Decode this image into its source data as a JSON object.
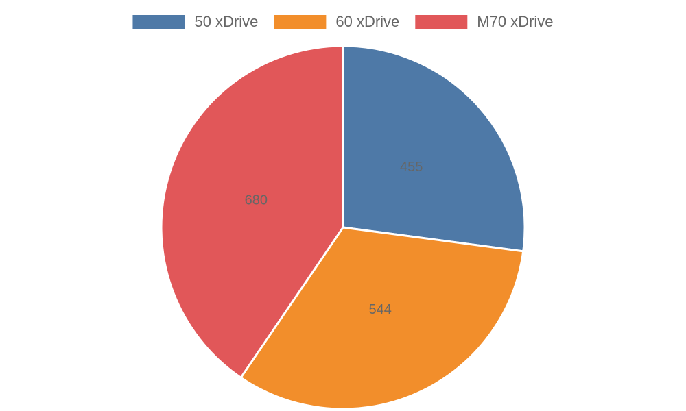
{
  "chart_data": {
    "type": "pie",
    "categories": [
      "50 xDrive",
      "60 xDrive",
      "M70 xDrive"
    ],
    "values": [
      455,
      544,
      680
    ],
    "colors": [
      "#4e79a7",
      "#f28e2b",
      "#e15759"
    ]
  }
}
